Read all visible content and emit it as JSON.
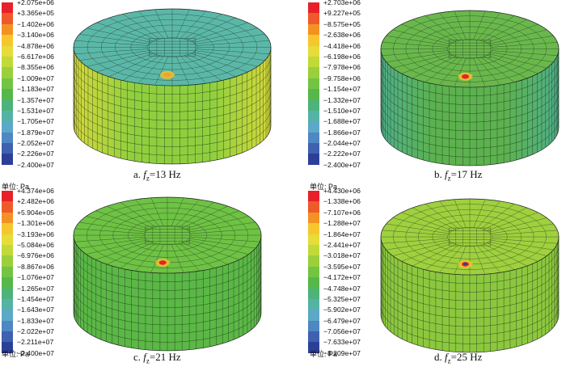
{
  "panels": [
    {
      "caption": {
        "prefix": "a. ",
        "var": "f",
        "sub": "z",
        "suffix": "=13 Hz"
      },
      "unit": "单位: Pa",
      "legend": [
        "+2.075e+06",
        "+3.365e+05",
        "−1.402e+06",
        "−3.140e+06",
        "−4.878e+06",
        "−6.617e+06",
        "−8.355e+06",
        "−1.009e+07",
        "−1.183e+07",
        "−1.357e+07",
        "−1.531e+07",
        "−1.705e+07",
        "−1.879e+07",
        "−2.052e+07",
        "−2.226e+07",
        "−2.400e+07"
      ]
    },
    {
      "caption": {
        "prefix": "b. ",
        "var": "f",
        "sub": "z",
        "suffix": "=17 Hz"
      },
      "unit": "单位: Pa",
      "legend": [
        "+2.703e+06",
        "+9.227e+05",
        "−8.575e+05",
        "−2.638e+06",
        "−4.418e+06",
        "−6.198e+06",
        "−7.978e+06",
        "−9.758e+06",
        "−1.154e+07",
        "−1.332e+07",
        "−1.510e+07",
        "−1.688e+07",
        "−1.866e+07",
        "−2.044e+07",
        "−2.222e+07",
        "−2.400e+07"
      ]
    },
    {
      "caption": {
        "prefix": "c. ",
        "var": "f",
        "sub": "z",
        "suffix": "=21 Hz"
      },
      "unit": "单位: Pa",
      "legend": [
        "+4.374e+06",
        "+2.482e+06",
        "+5.904e+05",
        "−1.301e+06",
        "−3.193e+06",
        "−5.084e+06",
        "−6.976e+06",
        "−8.867e+06",
        "−1.076e+07",
        "−1.265e+07",
        "−1.454e+07",
        "−1.643e+07",
        "−1.833e+07",
        "−2.022e+07",
        "−2.211e+07",
        "−2.400e+07"
      ]
    },
    {
      "caption": {
        "prefix": "d. ",
        "var": "f",
        "sub": "z",
        "suffix": "=25 Hz"
      },
      "unit": "单位: Pa",
      "legend": [
        "+4.430e+06",
        "−1.338e+06",
        "−7.107e+06",
        "−1.288e+07",
        "−1.864e+07",
        "−2.441e+07",
        "−3.018e+07",
        "−3.595e+07",
        "−4.172e+07",
        "−4.748e+07",
        "−5.325e+07",
        "−5.902e+07",
        "−6.479e+07",
        "−7.056e+07",
        "−7.633e+07",
        "−8.209e+07"
      ]
    }
  ],
  "colors": {
    "scale": [
      "#e8202a",
      "#ef5a2a",
      "#f39223",
      "#f7c62e",
      "#e6dc3a",
      "#c2d93a",
      "#9bcf3c",
      "#74c444",
      "#56b84a",
      "#4db37a",
      "#55b3a6",
      "#5ca8c8",
      "#4f86c4",
      "#3e61b0",
      "#2c3f98",
      "#1e2a84"
    ],
    "panel_colors": [
      {
        "top": "#5bb8a8",
        "side": "#8fcf3e",
        "side2": "#d6d93a",
        "hot": "#f3a226"
      },
      {
        "top": "#6ab84c",
        "side": "#5cb24e",
        "side2": "#4fb08a",
        "hot": "#e8202a"
      },
      {
        "top": "#6ec244",
        "side": "#5bb846",
        "side2": "#5bb846",
        "hot": "#e8202a"
      },
      {
        "top": "#9fd03e",
        "side": "#8cc83e",
        "side2": "#8cc83e",
        "hot": "#e8202a"
      }
    ]
  }
}
